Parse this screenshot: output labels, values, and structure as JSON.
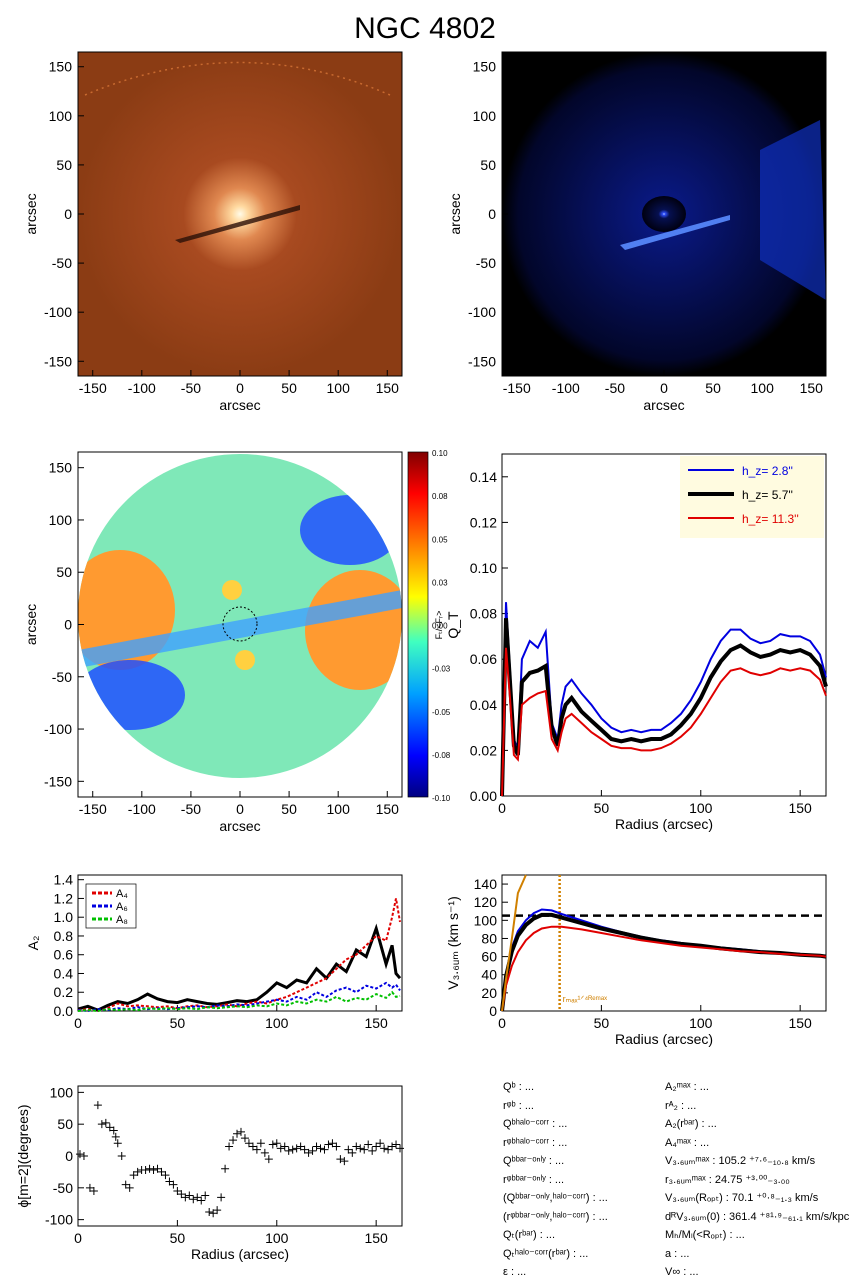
{
  "title": "NGC 4802",
  "colors": {
    "orange_bg": "#8b3c14",
    "orange_core": "#fff6dc",
    "blue_bg": "#000000",
    "blue_glow": "#1a3cff",
    "series_blue": "#0000e0",
    "series_black": "#000000",
    "series_red": "#e00000",
    "green": "#00c000",
    "legend_bg": "#fffbe0",
    "vline": "#d08000"
  },
  "panels": {
    "orange": {
      "xlabel": "arcsec",
      "ylabel": "arcsec",
      "xticks": [
        "-150",
        "-100",
        "-50",
        "0",
        "50",
        "100",
        "150"
      ],
      "yticks": [
        "150",
        "100",
        "50",
        "0",
        "-50",
        "-100",
        "-150"
      ]
    },
    "blue": {
      "xlabel": "arcsec",
      "ylabel": "arcsec",
      "xticks": [
        "-150",
        "-100",
        "-50",
        "0",
        "50",
        "100",
        "150"
      ],
      "yticks": [
        "150",
        "100",
        "50",
        "0",
        "-50",
        "-100",
        "-150"
      ]
    },
    "forcemap": {
      "xlabel": "arcsec",
      "ylabel": "arcsec",
      "xticks": [
        "-150",
        "-100",
        "-50",
        "0",
        "50",
        "100",
        "150"
      ],
      "yticks": [
        "150",
        "100",
        "50",
        "0",
        "-50",
        "-100",
        "-150"
      ],
      "colorbar_label": "Fₜ/<Fᵣ>",
      "colorbar_ticks": [
        "0.10",
        "0.08",
        "0.05",
        "0.03",
        "0.00",
        "-0.03",
        "-0.05",
        "-0.08",
        "-0.10"
      ]
    }
  },
  "chart_data": [
    {
      "type": "line",
      "id": "qt",
      "xlabel": "Radius (arcsec)",
      "ylabel": "Q_T",
      "xlim": [
        0,
        163
      ],
      "ylim": [
        0,
        0.15
      ],
      "xticks": [
        "0",
        "50",
        "100",
        "150"
      ],
      "yticks": [
        "0.00",
        "0.02",
        "0.04",
        "0.06",
        "0.08",
        "0.10",
        "0.12",
        "0.14"
      ],
      "legend": [
        {
          "label": "h_z=   2.8''",
          "color": "#0000e0"
        },
        {
          "label": "h_z=   5.7''",
          "color": "#000000"
        },
        {
          "label": "h_z=  11.3''",
          "color": "#e00000"
        }
      ],
      "x": [
        0,
        2,
        4,
        6,
        8,
        10,
        14,
        18,
        22,
        25,
        28,
        30,
        32,
        35,
        40,
        45,
        50,
        55,
        60,
        65,
        70,
        75,
        80,
        85,
        90,
        95,
        100,
        105,
        110,
        115,
        120,
        125,
        130,
        135,
        140,
        145,
        150,
        155,
        160,
        163
      ],
      "series": [
        {
          "name": "h_z=   2.8''",
          "values": [
            0.0,
            0.085,
            0.055,
            0.025,
            0.02,
            0.06,
            0.068,
            0.065,
            0.072,
            0.032,
            0.025,
            0.04,
            0.048,
            0.051,
            0.045,
            0.04,
            0.034,
            0.03,
            0.028,
            0.029,
            0.028,
            0.029,
            0.029,
            0.032,
            0.036,
            0.042,
            0.05,
            0.06,
            0.068,
            0.073,
            0.073,
            0.069,
            0.067,
            0.068,
            0.071,
            0.07,
            0.07,
            0.068,
            0.062,
            0.052
          ]
        },
        {
          "name": "h_z=   5.7''",
          "values": [
            0.0,
            0.078,
            0.05,
            0.022,
            0.018,
            0.05,
            0.054,
            0.055,
            0.057,
            0.03,
            0.022,
            0.034,
            0.04,
            0.043,
            0.037,
            0.033,
            0.029,
            0.025,
            0.024,
            0.025,
            0.024,
            0.025,
            0.025,
            0.027,
            0.031,
            0.036,
            0.043,
            0.052,
            0.059,
            0.064,
            0.066,
            0.063,
            0.061,
            0.062,
            0.064,
            0.063,
            0.064,
            0.062,
            0.057,
            0.048
          ]
        },
        {
          "name": "h_z=  11.3''",
          "values": [
            0.0,
            0.065,
            0.043,
            0.018,
            0.016,
            0.04,
            0.043,
            0.045,
            0.046,
            0.025,
            0.02,
            0.028,
            0.034,
            0.036,
            0.032,
            0.028,
            0.025,
            0.022,
            0.021,
            0.021,
            0.02,
            0.02,
            0.021,
            0.023,
            0.026,
            0.03,
            0.036,
            0.043,
            0.05,
            0.055,
            0.056,
            0.054,
            0.053,
            0.054,
            0.056,
            0.055,
            0.056,
            0.055,
            0.051,
            0.044
          ]
        }
      ]
    },
    {
      "type": "line",
      "id": "a2",
      "xlabel": "",
      "ylabel": "A₂",
      "xlim": [
        0,
        163
      ],
      "ylim": [
        0,
        1.45
      ],
      "xticks": [
        "0",
        "50",
        "100",
        "150"
      ],
      "yticks": [
        "0.0",
        "0.2",
        "0.4",
        "0.6",
        "0.8",
        "1.0",
        "1.2",
        "1.4"
      ],
      "legend": [
        {
          "label": "A₄",
          "color": "#e00000"
        },
        {
          "label": "A₆",
          "color": "#0000e0"
        },
        {
          "label": "A₈",
          "color": "#00c000"
        }
      ],
      "x": [
        0,
        5,
        10,
        15,
        20,
        25,
        30,
        35,
        40,
        45,
        50,
        55,
        60,
        65,
        70,
        75,
        80,
        85,
        90,
        95,
        100,
        105,
        110,
        115,
        120,
        125,
        130,
        135,
        140,
        145,
        150,
        155,
        158,
        160,
        162
      ],
      "series": [
        {
          "name": "",
          "values": [
            0.02,
            0.05,
            0.01,
            0.06,
            0.1,
            0.08,
            0.12,
            0.18,
            0.13,
            0.1,
            0.09,
            0.12,
            0.1,
            0.08,
            0.07,
            0.09,
            0.11,
            0.1,
            0.12,
            0.2,
            0.3,
            0.25,
            0.33,
            0.3,
            0.45,
            0.35,
            0.5,
            0.42,
            0.65,
            0.58,
            0.88,
            0.5,
            0.7,
            0.4,
            0.35
          ],
          "color": "#000000",
          "width": 3
        },
        {
          "name": "A₄",
          "values": [
            0.01,
            0.02,
            0.0,
            0.03,
            0.08,
            0.05,
            0.06,
            0.05,
            0.04,
            0.05,
            0.03,
            0.05,
            0.06,
            0.04,
            0.05,
            0.07,
            0.05,
            0.08,
            0.1,
            0.08,
            0.12,
            0.15,
            0.2,
            0.25,
            0.3,
            0.35,
            0.45,
            0.55,
            0.6,
            0.7,
            0.8,
            0.75,
            1.0,
            1.2,
            0.95
          ],
          "color": "#e00000",
          "width": 2,
          "dashed": true
        },
        {
          "name": "A₆",
          "values": [
            0.01,
            0.0,
            0.02,
            0.01,
            0.03,
            0.02,
            0.04,
            0.02,
            0.03,
            0.02,
            0.03,
            0.04,
            0.05,
            0.04,
            0.06,
            0.05,
            0.07,
            0.06,
            0.08,
            0.1,
            0.12,
            0.1,
            0.15,
            0.12,
            0.2,
            0.15,
            0.22,
            0.25,
            0.2,
            0.27,
            0.24,
            0.3,
            0.25,
            0.28,
            0.22
          ],
          "color": "#0000e0",
          "width": 2,
          "dashed": true
        },
        {
          "name": "A₈",
          "values": [
            0.0,
            0.01,
            0.0,
            0.02,
            0.01,
            0.02,
            0.01,
            0.03,
            0.02,
            0.03,
            0.02,
            0.03,
            0.02,
            0.04,
            0.03,
            0.04,
            0.05,
            0.04,
            0.06,
            0.05,
            0.08,
            0.06,
            0.1,
            0.08,
            0.12,
            0.1,
            0.15,
            0.1,
            0.14,
            0.12,
            0.18,
            0.14,
            0.2,
            0.15,
            0.16
          ],
          "color": "#00c000",
          "width": 2,
          "dashed": true
        }
      ]
    },
    {
      "type": "line",
      "id": "vrot",
      "xlabel": "Radius (arcsec)",
      "ylabel": "V₃.₆ᵤₘ (km s⁻¹)",
      "xlim": [
        0,
        163
      ],
      "ylim": [
        0,
        150
      ],
      "xticks": [
        "0",
        "50",
        "100",
        "150"
      ],
      "yticks": [
        "0",
        "20",
        "40",
        "60",
        "80",
        "100",
        "120",
        "140"
      ],
      "hline": 105.2,
      "vline": 29,
      "vline_label": "rₘₐₓ¹ᐟ⁴ᴿᵉᵐᵃˣ",
      "x": [
        0,
        2,
        5,
        8,
        12,
        16,
        20,
        25,
        30,
        40,
        50,
        60,
        70,
        80,
        90,
        100,
        110,
        120,
        130,
        140,
        150,
        160,
        163
      ],
      "series": [
        {
          "name": "",
          "values": [
            0,
            40,
            70,
            88,
            100,
            108,
            112,
            111,
            107,
            100,
            93,
            87,
            82,
            78,
            75,
            72,
            70,
            68,
            66,
            64,
            63,
            61,
            60
          ],
          "color": "#0000e0"
        },
        {
          "name": "",
          "values": [
            0,
            38,
            66,
            83,
            95,
            102,
            106,
            106,
            103,
            97,
            91,
            86,
            81,
            77,
            74,
            72,
            69,
            67,
            65,
            64,
            62,
            61,
            60
          ],
          "color": "#000000"
        },
        {
          "name": "",
          "values": [
            0,
            28,
            50,
            65,
            78,
            86,
            91,
            93,
            93,
            90,
            86,
            82,
            78,
            75,
            72,
            70,
            68,
            66,
            65,
            63,
            62,
            61,
            60
          ],
          "color": "#e00000"
        },
        {
          "name": "",
          "values": [
            0,
            35,
            80,
            130,
            190,
            null,
            null,
            null,
            null,
            null,
            null,
            null,
            null,
            null,
            null,
            null,
            null,
            null,
            null,
            null,
            null,
            null,
            null
          ],
          "color": "#d08000"
        }
      ]
    },
    {
      "type": "scatter",
      "id": "phase",
      "xlabel": "Radius (arcsec)",
      "ylabel": "ϕ[m=2](degrees)",
      "xlim": [
        0,
        163
      ],
      "ylim": [
        -110,
        110
      ],
      "xticks": [
        "0",
        "50",
        "100",
        "150"
      ],
      "yticks": [
        "100",
        "50",
        "0",
        "-50",
        "-100"
      ],
      "x": [
        1,
        3,
        6,
        8,
        10,
        12,
        14,
        16,
        18,
        19,
        20,
        22,
        24,
        26,
        28,
        30,
        32,
        34,
        36,
        38,
        40,
        42,
        44,
        46,
        48,
        50,
        52,
        54,
        56,
        58,
        60,
        62,
        64,
        66,
        68,
        70,
        72,
        74,
        76,
        78,
        80,
        82,
        84,
        86,
        88,
        90,
        92,
        94,
        96,
        98,
        100,
        102,
        104,
        106,
        108,
        110,
        112,
        114,
        116,
        118,
        120,
        122,
        124,
        126,
        128,
        130,
        132,
        134,
        136,
        138,
        140,
        142,
        144,
        146,
        148,
        150,
        152,
        154,
        156,
        158,
        160,
        162
      ],
      "values": [
        3,
        0,
        -50,
        -55,
        80,
        50,
        52,
        45,
        40,
        30,
        20,
        0,
        -45,
        -50,
        -30,
        -25,
        -22,
        -22,
        -20,
        -22,
        -20,
        -25,
        -30,
        -40,
        -45,
        -55,
        -60,
        -65,
        -62,
        -68,
        -65,
        -70,
        -62,
        -88,
        -90,
        -85,
        -65,
        -20,
        15,
        25,
        35,
        38,
        28,
        20,
        15,
        10,
        20,
        5,
        -5,
        18,
        20,
        12,
        15,
        8,
        10,
        12,
        15,
        10,
        5,
        8,
        15,
        12,
        10,
        18,
        20,
        15,
        -5,
        -8,
        10,
        5,
        15,
        12,
        10,
        18,
        8,
        15,
        20,
        12,
        10,
        15,
        18,
        12
      ]
    }
  ],
  "params_left": [
    "Qᵇ : ...",
    "rᵠᵇ : ...",
    "Qᵇʰᵃˡᵒ⁻ᶜᵒʳʳ : ...",
    "rᵠᵇʰᵃˡᵒ⁻ᶜᵒʳʳ : ...",
    "Qᵇᵇᵃʳ⁻ᵒⁿˡʸ : ...",
    "rᵠᵇᵇᵃʳ⁻ᵒⁿˡʸ : ...",
    "(Qᵇᵇᵃʳ⁻ᵒⁿˡʸ,ʰᵃˡᵒ⁻ᶜᵒʳʳ) : ...",
    "(rᵠᵇᵇᵃʳ⁻ᵒⁿˡʸ,ʰᵃˡᵒ⁻ᶜᵒʳʳ) : ...",
    "Qₜ(rᵇᵃʳ) : ...",
    "Qₜʰᵃˡᵒ⁻ᶜᵒʳʳ(rᵇᵃʳ) : ...",
    "ε : ..."
  ],
  "params_right": [
    "A₂ᵐᵃˣ : ...",
    "rᴬ₂ : ...",
    "A₂(rᵇᵃʳ) : ...",
    "A₄ᵐᵃˣ : ...",
    "V₃.₆ᵤₘᵐᵃˣ :  105.2 ⁺⁷·⁶₋₁₀.₈ km/s",
    "r₃.₆ᵤₘᵐᵃˣ :  24.75 ⁺³·⁰⁰₋₃.₀₀",
    "V₃.₆ᵤₘ(Rₒₚₜ) :  70.1 ⁺⁰·⁸₋₁.₃ km/s",
    "dᴿV₃.₆ᵤₘ(0) :  361.4 ⁺⁸¹·⁹₋₆₁.₁ km/s/kpc",
    "Mₕ/Mₗ(<Rₒₚₜ) : ...",
    "a : ...",
    "V∞ : ..."
  ]
}
